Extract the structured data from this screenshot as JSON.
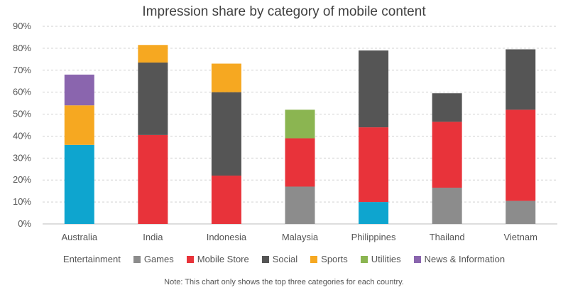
{
  "chart_data": {
    "type": "bar",
    "stacked": true,
    "title": "Impression share by category of mobile content",
    "note": "Note: This chart only shows the top three categories for each country.",
    "categories": [
      "Australia",
      "India",
      "Indonesia",
      "Malaysia",
      "Philippines",
      "Thailand",
      "Vietnam"
    ],
    "ylim": [
      0,
      90
    ],
    "yticks": [
      0,
      10,
      20,
      30,
      40,
      50,
      60,
      70,
      80,
      90
    ],
    "ytick_suffix": "%",
    "grid": true,
    "legend_position": "bottom",
    "series": [
      {
        "name": "Entertainment",
        "color": "#0EA5CF",
        "values": [
          36,
          0,
          0,
          0,
          10,
          0,
          0
        ]
      },
      {
        "name": "Games",
        "color": "#8C8C8C",
        "values": [
          0,
          0,
          0,
          17,
          0,
          16.5,
          10.5
        ]
      },
      {
        "name": "Mobile Store",
        "color": "#E8333A",
        "values": [
          0,
          40.5,
          22,
          22,
          34,
          30,
          41.5
        ]
      },
      {
        "name": "Social",
        "color": "#555555",
        "values": [
          0,
          33,
          38,
          0,
          35,
          13,
          27.5
        ]
      },
      {
        "name": "Sports",
        "color": "#F6A821",
        "values": [
          18,
          8,
          13,
          0,
          0,
          0,
          0
        ]
      },
      {
        "name": "Utilities",
        "color": "#8BB551",
        "values": [
          0,
          0,
          0,
          13,
          0,
          0,
          0
        ]
      },
      {
        "name": "News & Information",
        "color": "#8A65AE",
        "values": [
          14,
          0,
          0,
          0,
          0,
          0,
          0
        ]
      }
    ]
  }
}
